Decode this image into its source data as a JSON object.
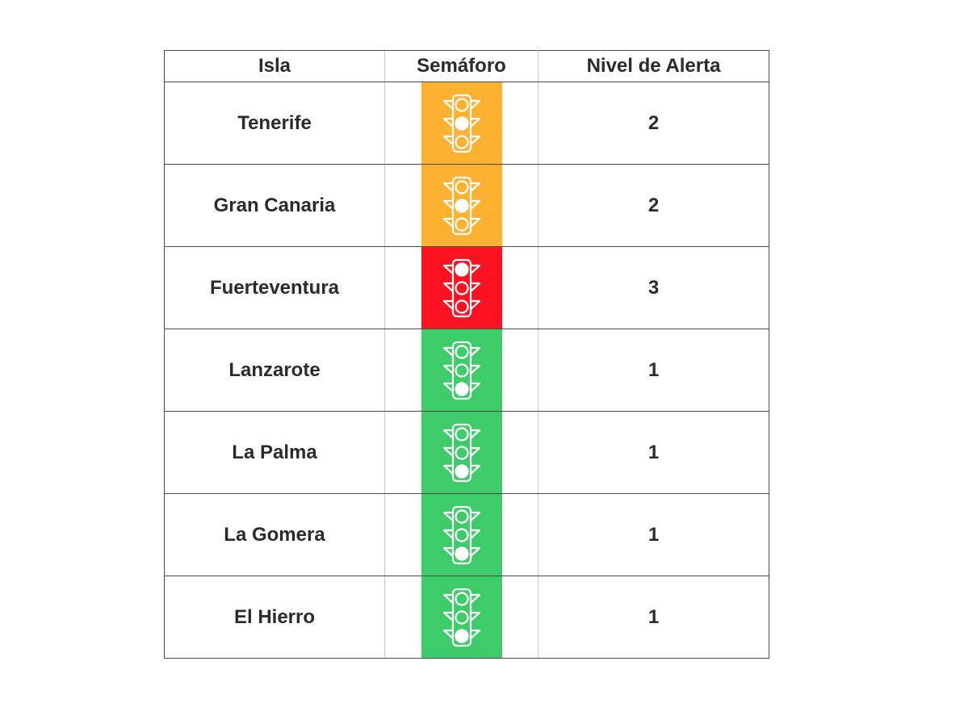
{
  "headers": {
    "isla": "Isla",
    "semaforo": "Semáforo",
    "nivel": "Nivel de Alerta"
  },
  "level_colors": {
    "1": "#3ecc6a",
    "2": "#fcb230",
    "3": "#fc1221"
  },
  "icon_name": "traffic-light-icon",
  "rows": [
    {
      "isla": "Tenerife",
      "nivel": "2",
      "lit": "middle"
    },
    {
      "isla": "Gran Canaria",
      "nivel": "2",
      "lit": "middle"
    },
    {
      "isla": "Fuerteventura",
      "nivel": "3",
      "lit": "top"
    },
    {
      "isla": "Lanzarote",
      "nivel": "1",
      "lit": "bottom"
    },
    {
      "isla": "La Palma",
      "nivel": "1",
      "lit": "bottom"
    },
    {
      "isla": "La Gomera",
      "nivel": "1",
      "lit": "bottom"
    },
    {
      "isla": "El Hierro",
      "nivel": "1",
      "lit": "bottom"
    }
  ]
}
